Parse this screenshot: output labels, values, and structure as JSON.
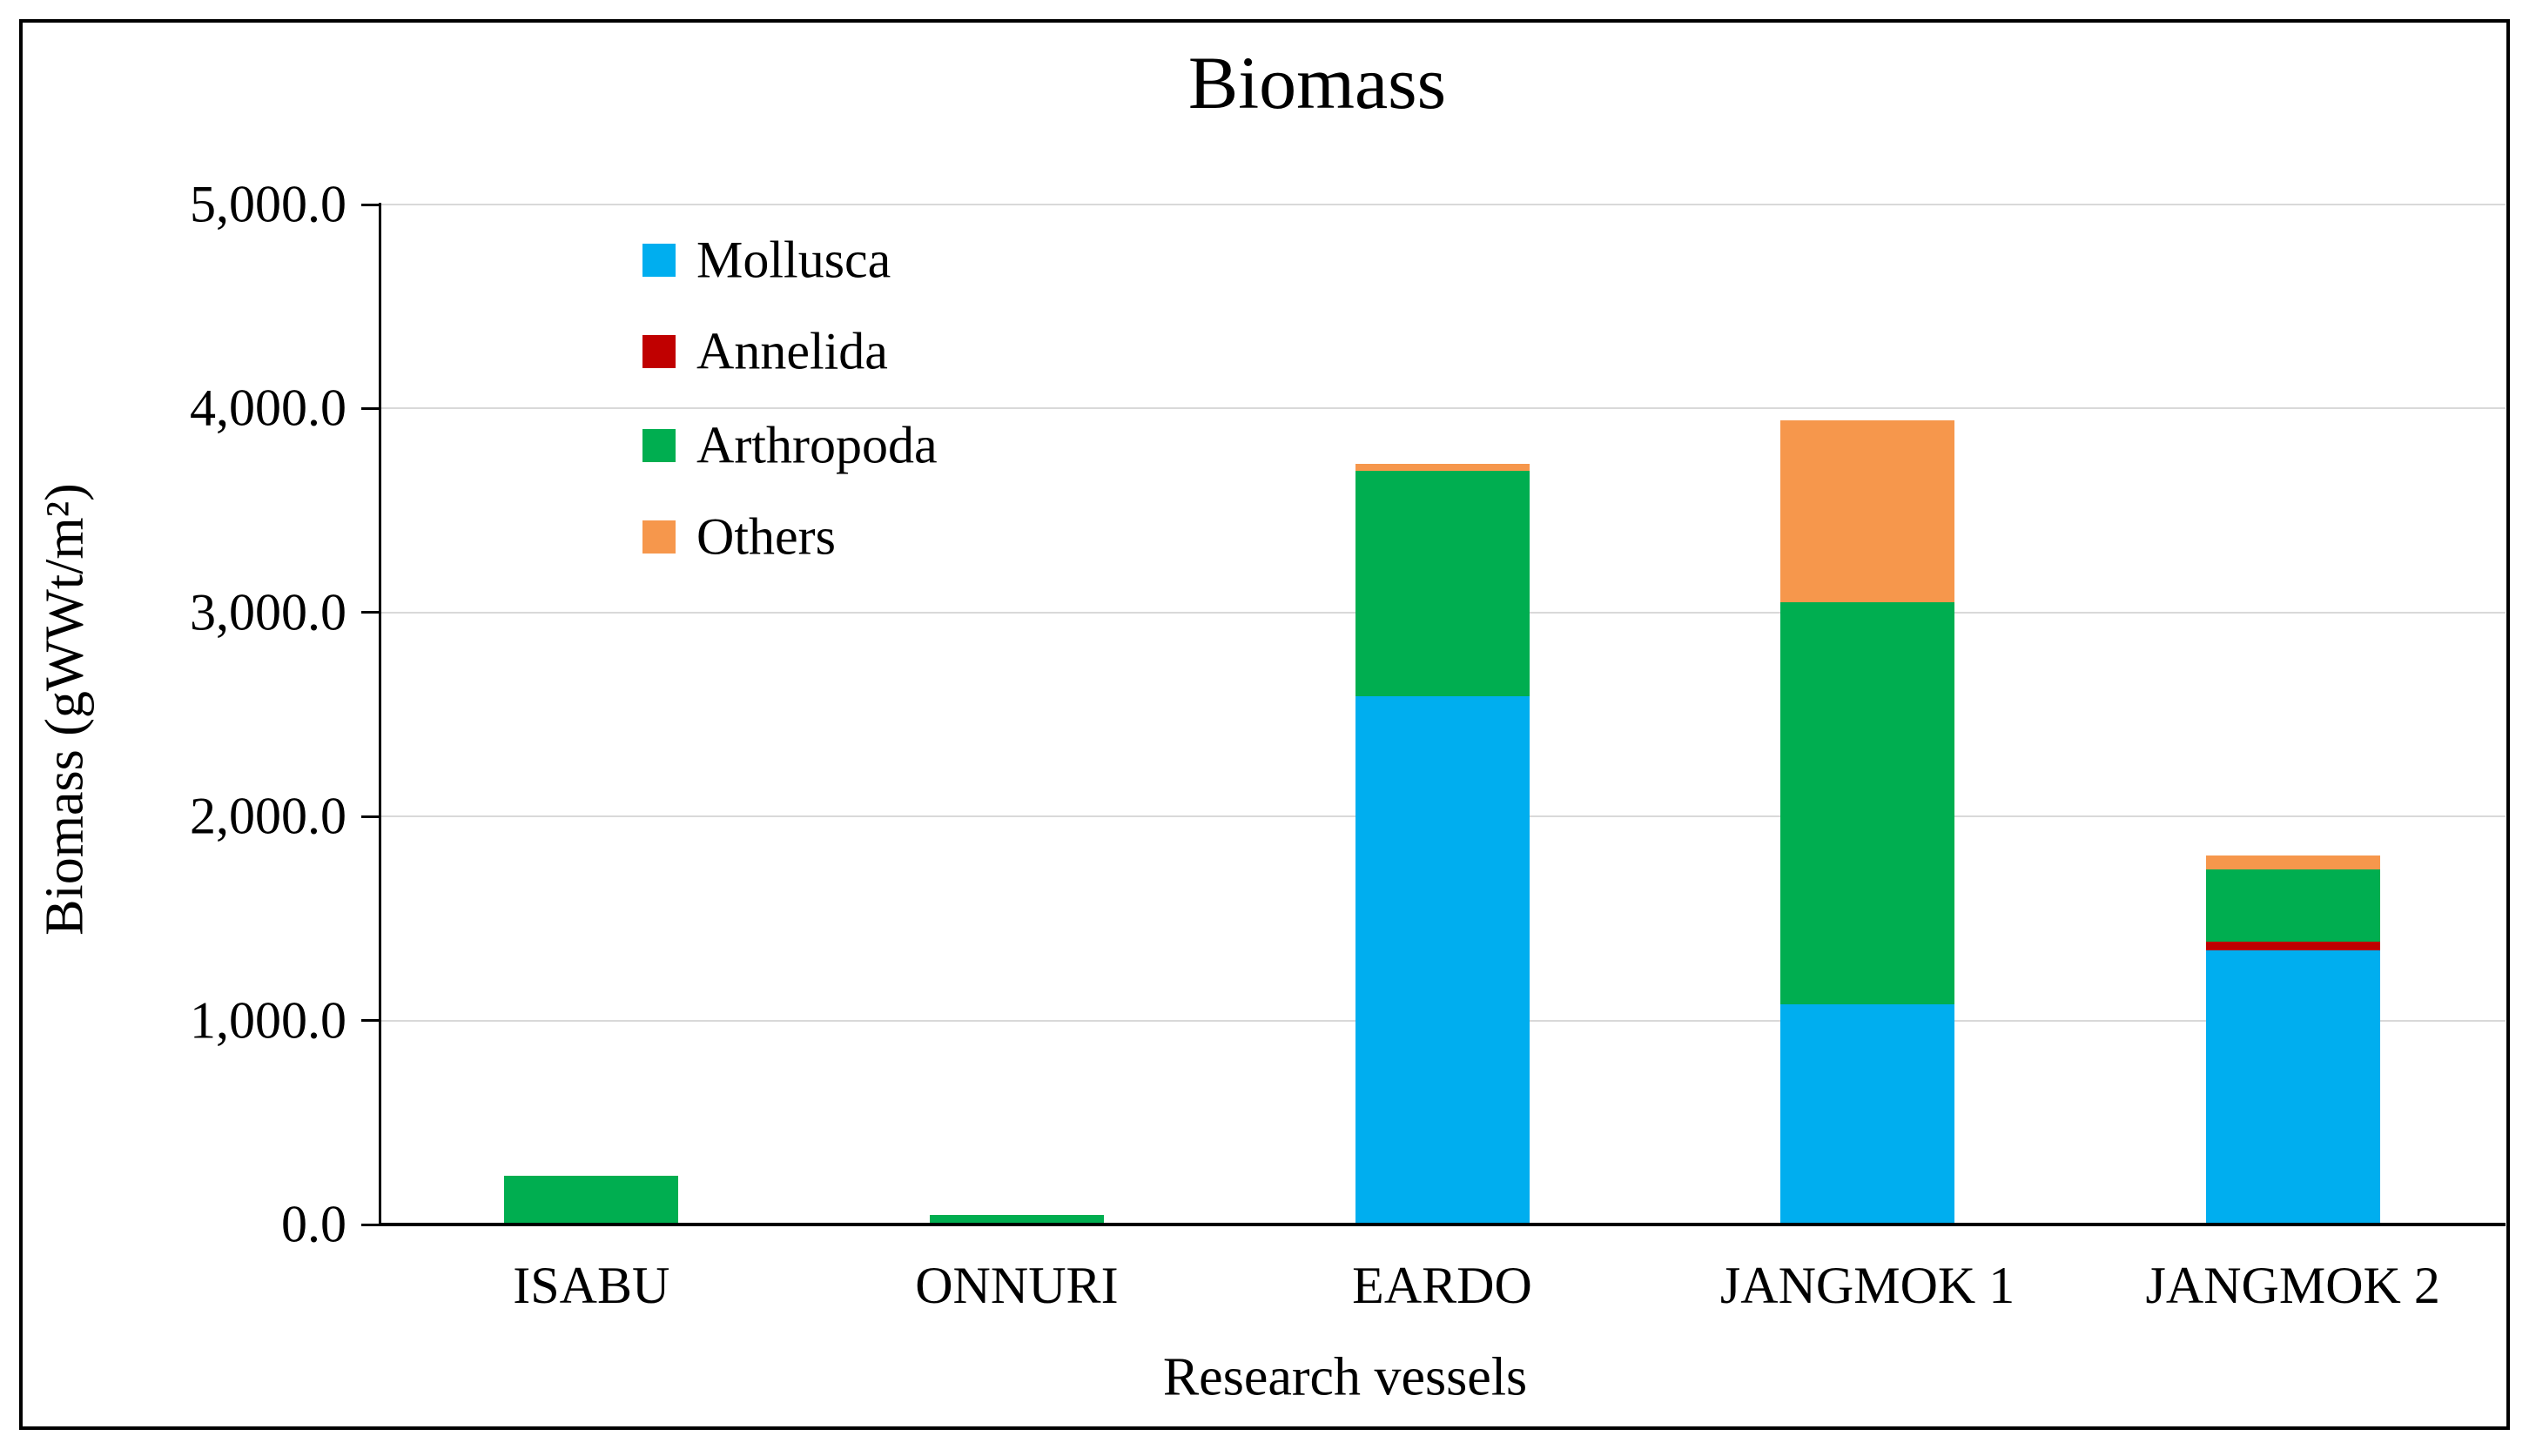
{
  "chart_data": {
    "type": "bar",
    "stacked": true,
    "title": "Biomass",
    "xlabel": "Research vessels",
    "ylabel": "Biomass (gWWt/m²)",
    "categories": [
      "ISABU",
      "ONNURI",
      "EARDO",
      "JANGMOK 1",
      "JANGMOK 2"
    ],
    "series": [
      {
        "name": "Mollusca",
        "color": "#00AEEF",
        "values": [
          0,
          0,
          2590,
          1080,
          1345
        ]
      },
      {
        "name": "Annelida",
        "color": "#C00000",
        "values": [
          0,
          0,
          0,
          0,
          40
        ]
      },
      {
        "name": "Arthropoda",
        "color": "#00AE50",
        "values": [
          240,
          45,
          1105,
          1970,
          355
        ]
      },
      {
        "name": "Others",
        "color": "#F6974C",
        "values": [
          0,
          0,
          35,
          890,
          70
        ]
      }
    ],
    "ylim": [
      0,
      5000
    ],
    "ytick_labels": [
      "0.0",
      "1,000.0",
      "2,000.0",
      "3,000.0",
      "4,000.0",
      "5,000.0"
    ],
    "grid": "horizontal-major",
    "legend_position": "top-left-inside",
    "colors": {
      "gridline": "#D9D9D9",
      "axis": "#000000",
      "frame": "#000000",
      "background": "#FFFFFF"
    }
  }
}
